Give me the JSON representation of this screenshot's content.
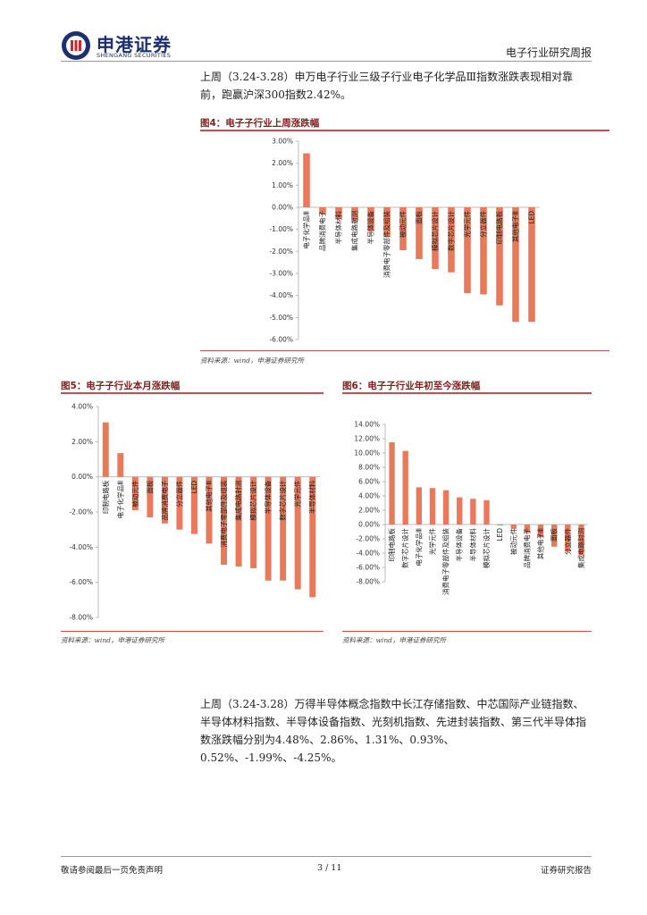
{
  "header": {
    "brand_cn": "申港证券",
    "brand_en": "SHENGANG SECURITIES",
    "report_type": "电子行业研究周报"
  },
  "body": {
    "para1": "上周（3.24-3.28）申万电子行业三级子行业电子化学品Ⅲ指数涨跌表现相对靠前，跑赢沪深300指数2.42%。",
    "para2": "上周（3.24-3.28）万得半导体概念指数中长江存储指数、中芯国际产业链指数、半导体材料指数、半导体设备指数、光刻机指数、先进封装指数、第三代半导体指数涨跌幅分别为4.48%、2.86%、1.31%、0.93%、0.52%、-1.99%、-4.25%。"
  },
  "figures": {
    "fig4": {
      "title": "图4：电子子行业上周涨跌幅",
      "source": "资料来源：wind，申港证券研究所"
    },
    "fig5": {
      "title": "图5：电子子行业本月涨跌幅",
      "source": "资料来源：wind，申港证券研究所"
    },
    "fig6": {
      "title": "图6：电子子行业年初至今涨跌幅",
      "source": "资料来源：wind，申港证券研究所"
    }
  },
  "footer": {
    "left": "敬请参阅最后一页免责声明",
    "page": "3 / 11",
    "right": "证券研究报告"
  },
  "colors": {
    "bar": "#e8795a",
    "accent": "#c0504d",
    "title": "#7f1f1f",
    "brand": "#1d2f6f",
    "brand_red": "#d0262d"
  },
  "chart_data": [
    {
      "type": "bar",
      "title": "图4：电子子行业上周涨跌幅",
      "categories": [
        "电子化学品Ⅲ",
        "品牌消费电子",
        "半导体材料",
        "集成电路封测",
        "半导体设备",
        "消费电子零部件及组装",
        "被动元件",
        "面板",
        "模拟芯片设计",
        "数字芯片设计",
        "光学元件",
        "分立器件",
        "印制电路板",
        "其他电子Ⅲ",
        "LED"
      ],
      "values": [
        2.45,
        -0.3,
        -0.52,
        -0.65,
        -1.1,
        -1.35,
        -1.95,
        -2.35,
        -2.8,
        -2.95,
        -3.9,
        -3.95,
        -4.45,
        -5.2,
        -5.2
      ],
      "ylim": [
        -6,
        3
      ],
      "yticks": [
        "3.00%",
        "2.00%",
        "1.00%",
        "0.00%",
        "-1.00%",
        "-2.00%",
        "-3.00%",
        "-4.00%",
        "-5.00%",
        "-6.00%"
      ],
      "grid": false
    },
    {
      "type": "bar",
      "title": "图5：电子子行业本月涨跌幅",
      "categories": [
        "印制电路板",
        "电子化学品Ⅲ",
        "被动元件",
        "面板",
        "品牌消费电子",
        "分立器件",
        "LED",
        "其他电子Ⅲ",
        "消费电子零部件及组装",
        "集成电路封测",
        "模拟芯片设计",
        "半导体设备",
        "数字芯片设计",
        "光学元件",
        "半导体材料"
      ],
      "values": [
        3.1,
        1.35,
        -1.9,
        -2.3,
        -2.65,
        -3.0,
        -3.25,
        -3.8,
        -5.0,
        -5.1,
        -5.2,
        -5.9,
        -5.9,
        -6.4,
        -6.85
      ],
      "ylim": [
        -8,
        4
      ],
      "yticks": [
        "4.00%",
        "2.00%",
        "0.00%",
        "-2.00%",
        "-4.00%",
        "-6.00%",
        "-8.00%"
      ],
      "grid": false
    },
    {
      "type": "bar",
      "title": "图6：电子子行业年初至今涨跌幅",
      "categories": [
        "印制电路板",
        "数字芯片设计",
        "电子化学品Ⅲ",
        "光学元件",
        "消费电子零部件及组装",
        "半导体设备",
        "半导体材料",
        "模拟芯片设计",
        "LED",
        "被动元件",
        "品牌消费电子",
        "其他电子Ⅲ",
        "面板",
        "分立器件",
        "集成电路封测"
      ],
      "values": [
        11.5,
        10.3,
        5.2,
        5.1,
        4.8,
        3.8,
        3.6,
        3.4,
        -0.1,
        -0.6,
        -1.2,
        -1.8,
        -3.1,
        -3.8,
        -4.3
      ],
      "ylim": [
        -8,
        14
      ],
      "yticks": [
        "14.00%",
        "12.00%",
        "10.00%",
        "8.00%",
        "6.00%",
        "4.00%",
        "2.00%",
        "0.00%",
        "-2.00%",
        "-4.00%",
        "-6.00%",
        "-8.00%"
      ],
      "grid": false
    }
  ]
}
